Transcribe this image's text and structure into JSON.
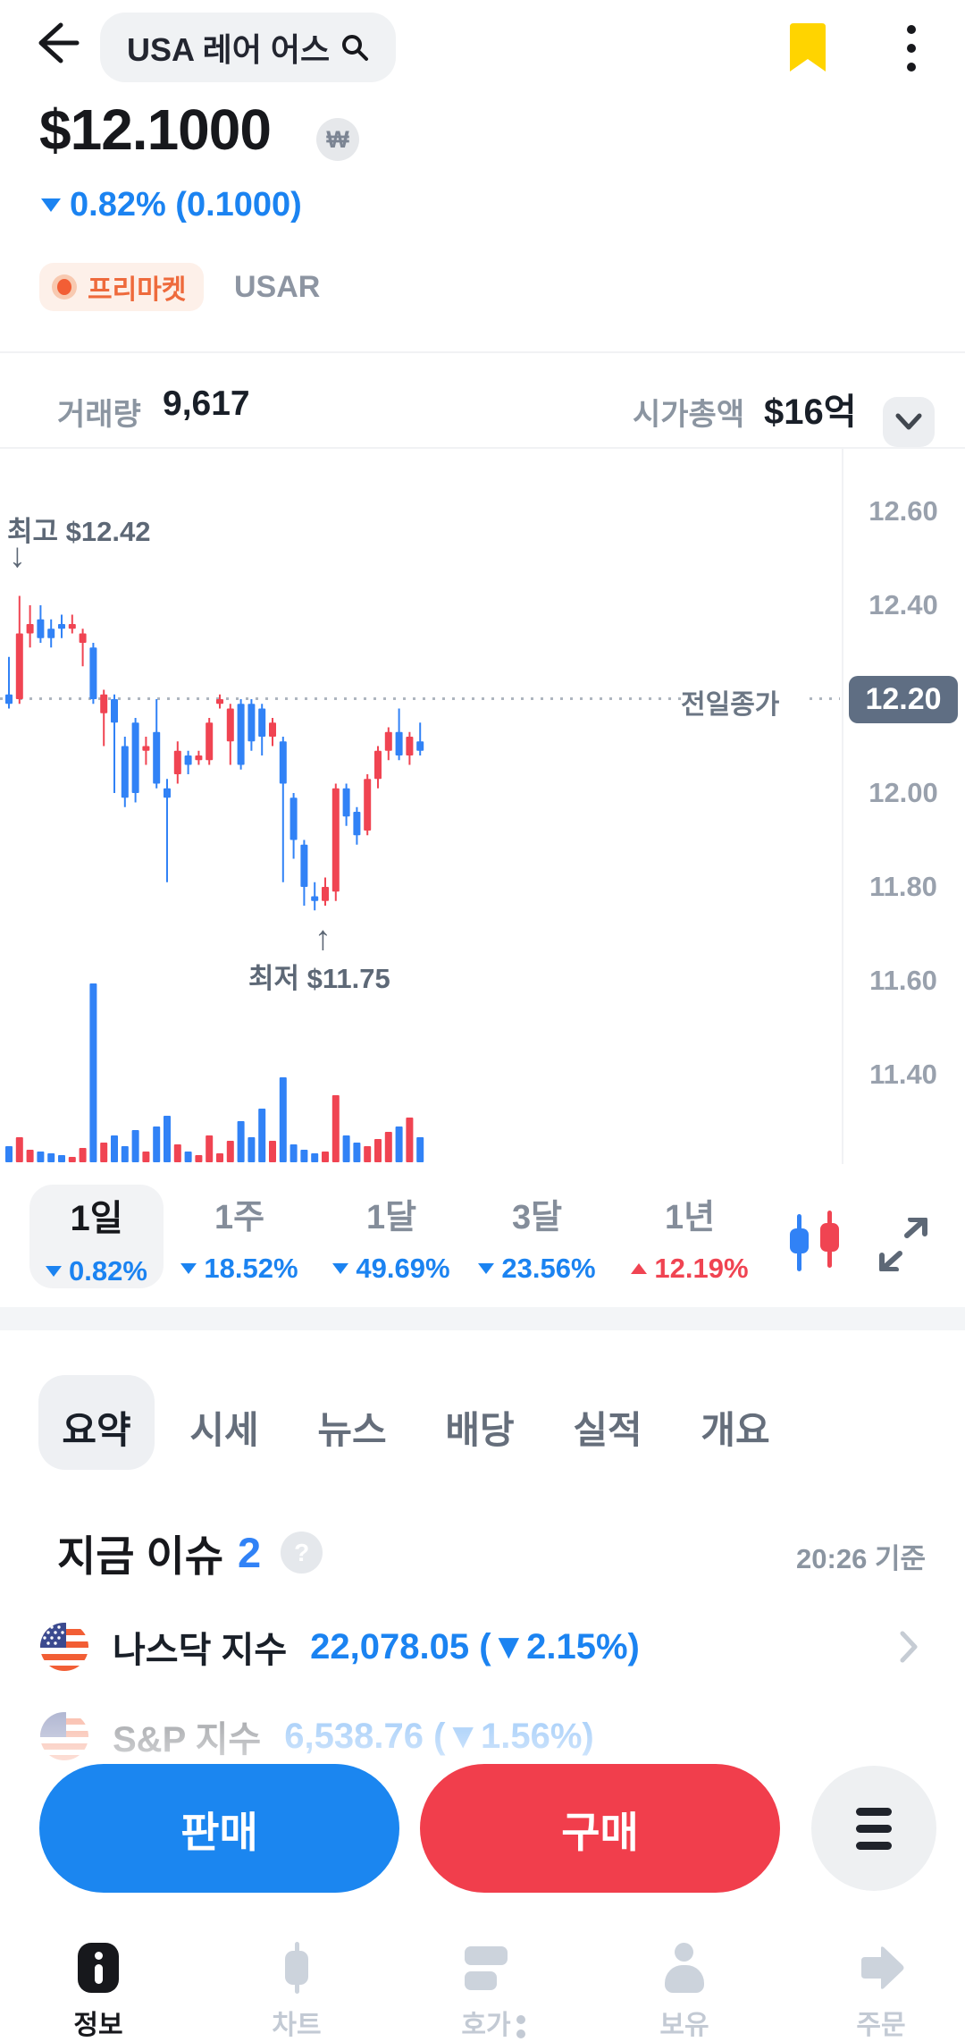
{
  "colors": {
    "accent_blue": "#3182f6",
    "accent_red": "#f04452",
    "text_blue": "#1b83f1",
    "bookmark_yellow": "#ffd400",
    "premarket_orange": "#f25e35",
    "prev_close_badge": "#5f6e83",
    "sell_button_blue": "#1b86f0",
    "buy_button_red": "#f13e4c"
  },
  "header": {
    "search_query": "USA 레어 어스"
  },
  "price": {
    "value": "$12.1000",
    "currency_badge": "₩",
    "change": "0.82% (0.1000)",
    "change_direction": "down"
  },
  "market": {
    "premarket_label": "프리마켓",
    "ticker": "USAR"
  },
  "stats": {
    "volume_label": "거래량",
    "volume_value": "9,617",
    "cap_label": "시가총액",
    "cap_value": "$16억"
  },
  "chart_data": {
    "type": "candlestick",
    "title": "USA 레어 어스 1일 차트",
    "y_ticks": [
      12.6,
      12.4,
      12.2,
      12.0,
      11.8,
      11.6,
      11.4
    ],
    "y_range": [
      11.21,
      12.74
    ],
    "prev_close": 12.2,
    "prev_close_display": "12.20",
    "prev_close_label": "전일종가",
    "high": 12.42,
    "low": 11.75,
    "high_annotation": "최고 $12.42",
    "low_annotation": "최저 $11.75",
    "up_color": "#f04452",
    "down_color": "#3182f6",
    "grid": false,
    "candle_format": "[open, high, low, close, volume_rel]",
    "candles": [
      [
        12.21,
        12.29,
        12.18,
        12.19,
        18
      ],
      [
        12.2,
        12.42,
        12.19,
        12.34,
        28
      ],
      [
        12.34,
        12.4,
        12.31,
        12.36,
        14
      ],
      [
        12.37,
        12.4,
        12.32,
        12.33,
        12
      ],
      [
        12.35,
        12.37,
        12.31,
        12.33,
        10
      ],
      [
        12.36,
        12.38,
        12.33,
        12.35,
        8
      ],
      [
        12.35,
        12.38,
        12.34,
        12.36,
        6
      ],
      [
        12.32,
        12.35,
        12.27,
        12.34,
        16
      ],
      [
        12.31,
        12.32,
        12.19,
        12.2,
        200
      ],
      [
        12.17,
        12.22,
        12.1,
        12.21,
        22
      ],
      [
        12.2,
        12.21,
        12.0,
        12.15,
        30
      ],
      [
        12.1,
        12.12,
        11.97,
        11.99,
        18
      ],
      [
        12.15,
        12.16,
        11.98,
        12.0,
        36
      ],
      [
        12.09,
        12.12,
        12.06,
        12.1,
        12
      ],
      [
        12.13,
        12.2,
        12.01,
        12.02,
        40
      ],
      [
        12.01,
        12.03,
        11.81,
        11.99,
        52
      ],
      [
        12.04,
        12.11,
        12.02,
        12.09,
        20
      ],
      [
        12.08,
        12.09,
        12.04,
        12.06,
        12
      ],
      [
        12.07,
        12.09,
        12.06,
        12.08,
        8
      ],
      [
        12.07,
        12.16,
        12.06,
        12.15,
        30
      ],
      [
        12.19,
        12.21,
        12.18,
        12.2,
        10
      ],
      [
        12.11,
        12.19,
        12.06,
        12.18,
        24
      ],
      [
        12.19,
        12.2,
        12.05,
        12.06,
        46
      ],
      [
        12.19,
        12.2,
        12.09,
        12.11,
        28
      ],
      [
        12.18,
        12.19,
        12.08,
        12.12,
        60
      ],
      [
        12.12,
        12.16,
        12.1,
        12.15,
        24
      ],
      [
        12.11,
        12.12,
        11.81,
        12.02,
        95
      ],
      [
        11.99,
        12.0,
        11.86,
        11.9,
        20
      ],
      [
        11.89,
        11.9,
        11.76,
        11.8,
        14
      ],
      [
        11.78,
        11.81,
        11.75,
        11.77,
        10
      ],
      [
        11.77,
        11.82,
        11.76,
        11.8,
        12
      ],
      [
        11.79,
        12.02,
        11.77,
        12.01,
        75
      ],
      [
        12.01,
        12.02,
        11.93,
        11.95,
        30
      ],
      [
        11.96,
        11.97,
        11.89,
        11.91,
        22
      ],
      [
        11.92,
        12.04,
        11.91,
        12.03,
        18
      ],
      [
        12.03,
        12.1,
        12.01,
        12.09,
        26
      ],
      [
        12.09,
        12.14,
        12.07,
        12.13,
        34
      ],
      [
        12.13,
        12.18,
        12.07,
        12.08,
        40
      ],
      [
        12.08,
        12.13,
        12.06,
        12.12,
        50
      ],
      [
        12.11,
        12.15,
        12.08,
        12.09,
        28
      ]
    ]
  },
  "periods": [
    {
      "label": "1일",
      "change": "0.82%",
      "direction": "down",
      "selected": true
    },
    {
      "label": "1주",
      "change": "18.52%",
      "direction": "down",
      "selected": false
    },
    {
      "label": "1달",
      "change": "49.69%",
      "direction": "down",
      "selected": false
    },
    {
      "label": "3달",
      "change": "23.56%",
      "direction": "down",
      "selected": false
    },
    {
      "label": "1년",
      "change": "12.19%",
      "direction": "up",
      "selected": false
    }
  ],
  "tabs": [
    "요약",
    "시세",
    "뉴스",
    "배당",
    "실적",
    "개요"
  ],
  "issue": {
    "title": "지금 이슈",
    "count": "2",
    "time": "20:26 기준",
    "items": [
      {
        "name": "나스닥 지수",
        "value": "22,078.05 (▼2.15%)"
      },
      {
        "name": "S&P 지수",
        "value": "6,538.76 (▼1.56%)"
      }
    ]
  },
  "actions": {
    "sell_label": "판매",
    "buy_label": "구매"
  },
  "nav": {
    "items": [
      {
        "label": "정보",
        "active": true
      },
      {
        "label": "차트",
        "active": false
      },
      {
        "label": "호가",
        "active": false
      },
      {
        "label": "보유",
        "active": false
      },
      {
        "label": "주문",
        "active": false
      }
    ]
  }
}
